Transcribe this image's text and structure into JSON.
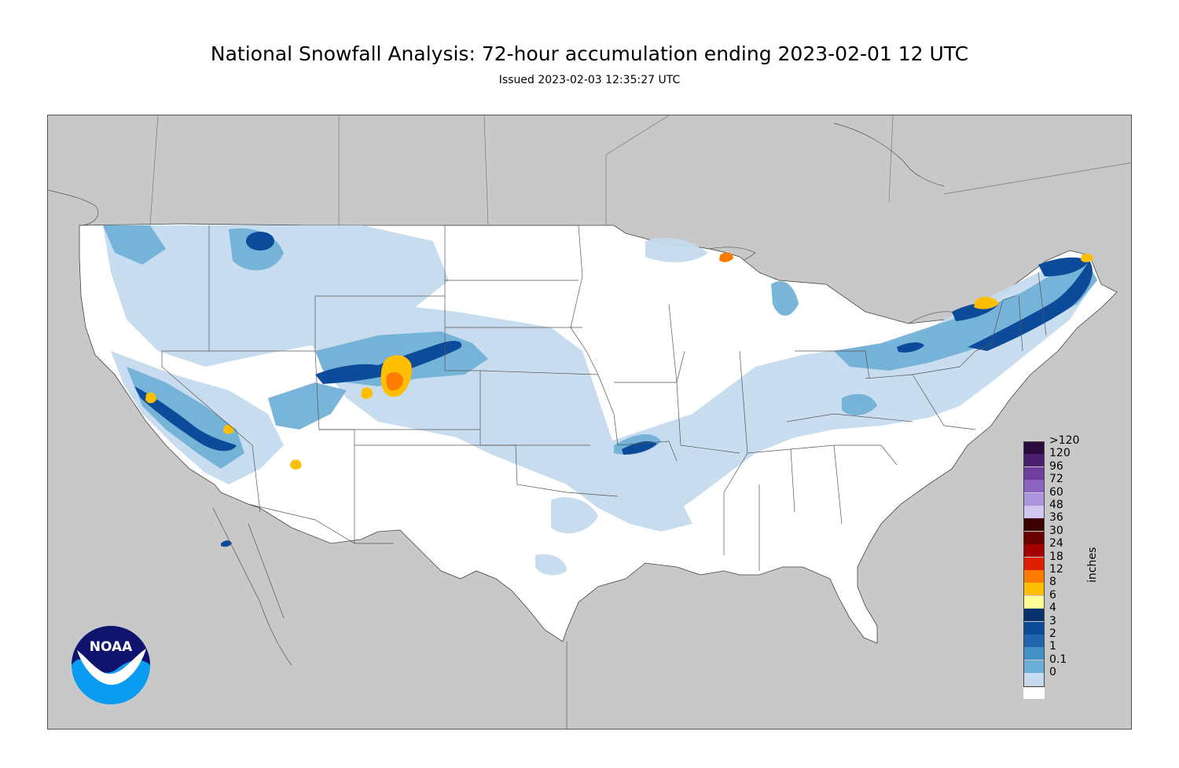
{
  "title": "National Snowfall Analysis: 72-hour accumulation ending 2023-02-01 12 UTC",
  "subtitle": "Issued 2023-02-03 12:35:27 UTC",
  "legend": {
    "units": "inches",
    "items": [
      {
        "label": ">120",
        "color": "#2b0a3d"
      },
      {
        "label": "120",
        "color": "#4b1f6f"
      },
      {
        "label": "96",
        "color": "#6f3f9e"
      },
      {
        "label": "72",
        "color": "#8c64c2"
      },
      {
        "label": "60",
        "color": "#ab95dc"
      },
      {
        "label": "48",
        "color": "#d0c6f2"
      },
      {
        "label": "36",
        "color": "#3b0000"
      },
      {
        "label": "30",
        "color": "#6b0000"
      },
      {
        "label": "24",
        "color": "#a50000"
      },
      {
        "label": "18",
        "color": "#dd1e00"
      },
      {
        "label": "12",
        "color": "#ff7a00"
      },
      {
        "label": "8",
        "color": "#ffbe00"
      },
      {
        "label": "6",
        "color": "#ffff98"
      },
      {
        "label": "4",
        "color": "#08306b"
      },
      {
        "label": "3",
        "color": "#0c4a9a"
      },
      {
        "label": "2",
        "color": "#2166ac"
      },
      {
        "label": "1",
        "color": "#4292c6"
      },
      {
        "label": "0.1",
        "color": "#6baed6"
      },
      {
        "label": "0",
        "color": "#c6dbef"
      }
    ],
    "bottom_color": "#ffffff"
  },
  "logo": {
    "text": "NOAA"
  },
  "map_colors": {
    "land": "#ffffff",
    "outside": "#c8c8c8",
    "border": "#444444"
  }
}
